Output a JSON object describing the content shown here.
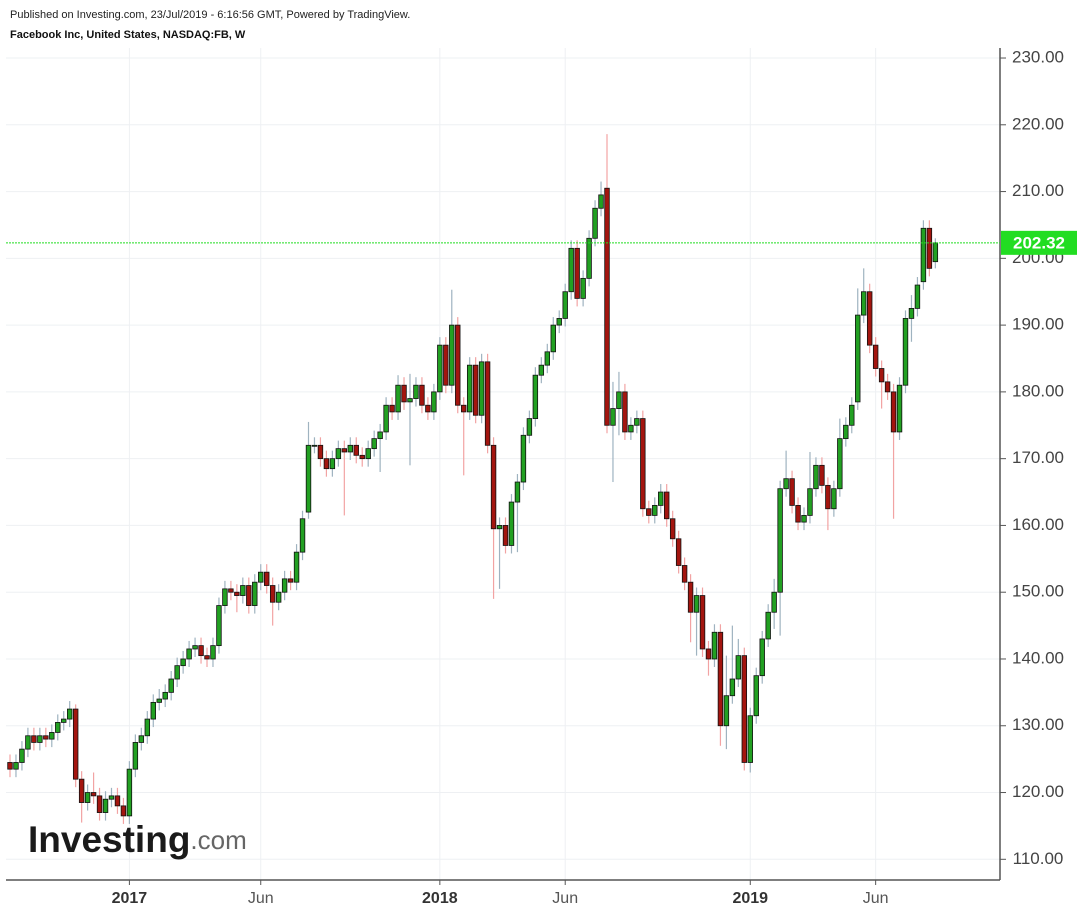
{
  "header": {
    "published": "Published on Investing.com, 23/Jul/2019 - 6:16:56 GMT, Powered by TradingView.",
    "instrument": "Facebook Inc, United States, NASDAQ:FB, W"
  },
  "watermark": [
    "Investing",
    ".com"
  ],
  "chart_data": {
    "type": "candlestick",
    "up_color": "#22a022",
    "down_color": "#a3150f",
    "up_wick_color": "#9fb3c0",
    "down_wick_color": "#f2a3a3",
    "last_price_color": "#22dd22",
    "ylim": [
      106.9,
      231.5
    ],
    "yticks": [
      {
        "value": 110,
        "label": "110.00"
      },
      {
        "value": 120,
        "label": "120.00"
      },
      {
        "value": 130,
        "label": "130.00"
      },
      {
        "value": 140,
        "label": "140.00"
      },
      {
        "value": 150,
        "label": "150.00"
      },
      {
        "value": 160,
        "label": "160.00"
      },
      {
        "value": 170,
        "label": "170.00"
      },
      {
        "value": 180,
        "label": "180.00"
      },
      {
        "value": 190,
        "label": "190.00"
      },
      {
        "value": 200,
        "label": "200.00"
      },
      {
        "value": 210,
        "label": "210.00"
      },
      {
        "value": 220,
        "label": "220.00"
      },
      {
        "value": 230,
        "label": "230.00"
      }
    ],
    "grid": true,
    "categories": [
      null,
      null,
      null,
      null,
      null,
      null,
      null,
      null,
      null,
      null,
      null,
      null,
      null,
      null,
      null,
      null,
      null,
      null,
      null,
      null,
      "2017",
      null,
      null,
      null,
      null,
      null,
      null,
      null,
      null,
      null,
      null,
      null,
      null,
      null,
      null,
      null,
      null,
      null,
      null,
      null,
      null,
      null,
      "Jun",
      null,
      null,
      null,
      null,
      null,
      null,
      null,
      null,
      null,
      null,
      null,
      null,
      null,
      null,
      null,
      null,
      null,
      null,
      null,
      null,
      null,
      null,
      null,
      null,
      null,
      null,
      null,
      null,
      null,
      "2018",
      null,
      null,
      null,
      null,
      null,
      null,
      null,
      null,
      null,
      null,
      null,
      null,
      null,
      null,
      null,
      null,
      null,
      null,
      null,
      null,
      "Jun",
      null,
      null,
      null,
      null,
      null,
      null,
      null,
      null,
      null,
      null,
      null,
      null,
      null,
      null,
      null,
      null,
      null,
      null,
      null,
      null,
      null,
      null,
      null,
      null,
      null,
      null,
      null,
      null,
      null,
      null,
      "2019",
      null,
      null,
      null,
      null,
      null,
      null,
      null,
      null,
      null,
      null,
      null,
      null,
      null,
      null,
      null,
      null,
      null,
      null,
      null,
      null,
      "Jun",
      null,
      null,
      null,
      null,
      null,
      null,
      null,
      null,
      null,
      null
    ],
    "open": [
      124.5,
      123.5,
      124.5,
      126.5,
      128.5,
      127.5,
      128.5,
      128,
      129,
      130.5,
      131,
      132.5,
      122,
      118.5,
      120,
      119.5,
      117,
      119,
      119.5,
      118,
      116.5,
      123.5,
      127.5,
      128.5,
      131,
      133.5,
      134,
      135,
      137,
      139,
      140,
      141.5,
      142,
      140.5,
      140,
      142,
      148,
      150.5,
      150,
      149.5,
      151,
      148,
      151.5,
      153,
      151,
      148.5,
      150,
      152,
      151.5,
      156,
      162,
      172,
      172,
      170,
      168.5,
      170,
      171.5,
      171,
      172,
      170.5,
      170,
      171.5,
      173,
      174,
      178,
      177,
      181,
      178.5,
      179,
      181,
      178,
      177,
      180,
      187,
      181,
      190,
      178,
      177,
      184,
      176.5,
      184.5,
      172,
      159.5,
      160,
      157,
      163.5,
      166.5,
      173.5,
      176,
      182.5,
      184,
      186,
      190,
      191,
      195,
      201.5,
      194,
      197,
      203,
      207.5,
      210.5,
      175,
      177.5,
      180,
      174,
      175,
      176,
      162.5,
      161.5,
      163,
      165,
      161,
      158,
      154,
      151.5,
      147,
      149.5,
      141.5,
      140,
      144,
      130,
      134.5,
      137,
      140.5,
      124.5,
      131.5,
      137.5,
      143,
      147,
      150,
      165.5,
      167,
      163,
      160.5,
      161.5,
      165.5,
      169,
      166,
      162.5,
      165.5,
      173,
      175,
      178.5,
      191.5,
      195,
      187,
      183.5,
      181.5,
      180,
      174,
      181,
      191,
      192.5,
      196.5,
      204.5,
      199.5
    ],
    "high": [
      125.7,
      125.7,
      127.7,
      129.7,
      129.7,
      129.7,
      129.7,
      130.2,
      131.7,
      132.2,
      133.7,
      133.2,
      123.2,
      121.2,
      123,
      120.7,
      120.2,
      120.7,
      120.7,
      119.2,
      124.7,
      128.7,
      129.7,
      132.2,
      134.7,
      135.5,
      136.2,
      138.2,
      140.2,
      141.2,
      142.7,
      143.2,
      143.2,
      141.7,
      143.2,
      149.2,
      151.7,
      151.7,
      151.2,
      152.2,
      152.2,
      152.7,
      154.2,
      154.2,
      152.2,
      151.2,
      153.2,
      153.2,
      157.2,
      162.2,
      175.5,
      173.2,
      173.2,
      171.2,
      171.2,
      172.7,
      172.7,
      173.2,
      173.2,
      171.7,
      172.7,
      174.2,
      175.2,
      179.2,
      179.2,
      182.5,
      182.2,
      182.7,
      182.2,
      182.2,
      179.2,
      181.2,
      188.2,
      188.2,
      195.3,
      191.2,
      179.2,
      185.2,
      185.2,
      185.7,
      185.7,
      173.2,
      161.2,
      161.2,
      164.7,
      167.7,
      174.7,
      177.2,
      183.7,
      185.2,
      187.2,
      191.2,
      192.2,
      196.2,
      202.7,
      202.7,
      198.2,
      204.2,
      208.7,
      211.5,
      218.6,
      181.5,
      183,
      181.2,
      176.2,
      177.2,
      177.2,
      163.7,
      164.2,
      166.2,
      166.2,
      162.2,
      159.2,
      155.2,
      152.7,
      150.7,
      150.7,
      142.7,
      145.2,
      145.2,
      140.5,
      145,
      143,
      141.7,
      132.7,
      138.7,
      144.2,
      148.2,
      152,
      166.7,
      171.2,
      168.2,
      164.2,
      162.7,
      171,
      170.2,
      170.2,
      167.2,
      166.7,
      176,
      176.2,
      179.2,
      195.5,
      198.5,
      196.2,
      188.2,
      184.7,
      182.7,
      181.2,
      182.2,
      192.2,
      194.5,
      197.2,
      205.7,
      205.7,
      203
    ],
    "low": [
      122.3,
      122.3,
      123.3,
      125.3,
      126.3,
      126.3,
      126.8,
      126.8,
      127.8,
      129.3,
      129.8,
      120.8,
      115.5,
      117.3,
      118.3,
      115.8,
      115.8,
      117.8,
      116.8,
      115.3,
      115.3,
      122.3,
      126.3,
      127.3,
      129.8,
      132.3,
      132.8,
      133.8,
      135.8,
      137.8,
      138.8,
      140.3,
      139.3,
      138.8,
      138.8,
      140.8,
      146.8,
      148.8,
      147,
      148.3,
      146.8,
      146.8,
      150.3,
      149.8,
      145,
      147.3,
      148.8,
      150.3,
      150.3,
      154.8,
      161,
      170.8,
      168.8,
      167.3,
      167.3,
      168.8,
      161.5,
      169.8,
      169.3,
      168.8,
      168.8,
      170.3,
      168,
      172.8,
      175.8,
      175.8,
      177.3,
      169,
      177.8,
      176.8,
      175.8,
      175.8,
      178.8,
      179.8,
      179.8,
      176.8,
      167.5,
      175.8,
      175.3,
      175.3,
      170.8,
      149,
      150.5,
      155.8,
      155.8,
      156,
      165.3,
      172.3,
      174.8,
      181.3,
      182.8,
      184.8,
      188.8,
      189.8,
      193.8,
      192.8,
      192.8,
      195.8,
      201.8,
      206.3,
      173.8,
      166.5,
      173.5,
      172.8,
      172.8,
      173.8,
      161.3,
      160.3,
      160.3,
      161.8,
      159.8,
      156.8,
      152.8,
      150.3,
      142.5,
      140.5,
      140.3,
      137.5,
      138.8,
      127,
      126.5,
      133.3,
      135.8,
      123.3,
      123,
      130.3,
      136.3,
      141.8,
      144.5,
      143.5,
      164.3,
      161.8,
      159.3,
      159.3,
      160.3,
      164.3,
      164.8,
      159.3,
      161.3,
      164.3,
      171.8,
      173.8,
      177.3,
      190.3,
      185.8,
      182.3,
      177.5,
      178.8,
      161,
      172.8,
      179.8,
      187.5,
      191.3,
      195.3,
      197.3,
      198.5
    ],
    "close": [
      123.5,
      124.5,
      126.5,
      128.5,
      127.5,
      128.5,
      128,
      129,
      130.5,
      131,
      132.5,
      122,
      118.5,
      120,
      119.5,
      117,
      119,
      119.5,
      118,
      116.5,
      123.5,
      127.5,
      128.5,
      131,
      133.5,
      134,
      135,
      137,
      139,
      140,
      141.5,
      142,
      140.5,
      140,
      142,
      148,
      150.5,
      150,
      149.5,
      151,
      148,
      151.5,
      153,
      151,
      148.5,
      150,
      152,
      151.5,
      156,
      161,
      172,
      172,
      170,
      168.5,
      170,
      171.5,
      171,
      172,
      170.5,
      170,
      171.5,
      173,
      174,
      178,
      177,
      181,
      178.5,
      179,
      181,
      178,
      177,
      180,
      187,
      181,
      190,
      178,
      177,
      184,
      176.5,
      184.5,
      172,
      159.5,
      160,
      157,
      163.5,
      166.5,
      173.5,
      176,
      182.5,
      184,
      186,
      190,
      191,
      195,
      201.5,
      194,
      197,
      203,
      207.5,
      209.5,
      175,
      177.5,
      180,
      174,
      175,
      176,
      162.5,
      161.5,
      163,
      165,
      161,
      158,
      154,
      151.5,
      147,
      149.5,
      141.5,
      140,
      144,
      130,
      134.5,
      137,
      140.5,
      124.5,
      131.5,
      137.5,
      143,
      147,
      150,
      165.5,
      167,
      163,
      160.5,
      161.5,
      165.5,
      169,
      166,
      162.5,
      165.5,
      173,
      175,
      178,
      191.5,
      195,
      187,
      183.5,
      181.5,
      180,
      174,
      181,
      191,
      192.5,
      196,
      204.5,
      198.5,
      202.32
    ]
  }
}
